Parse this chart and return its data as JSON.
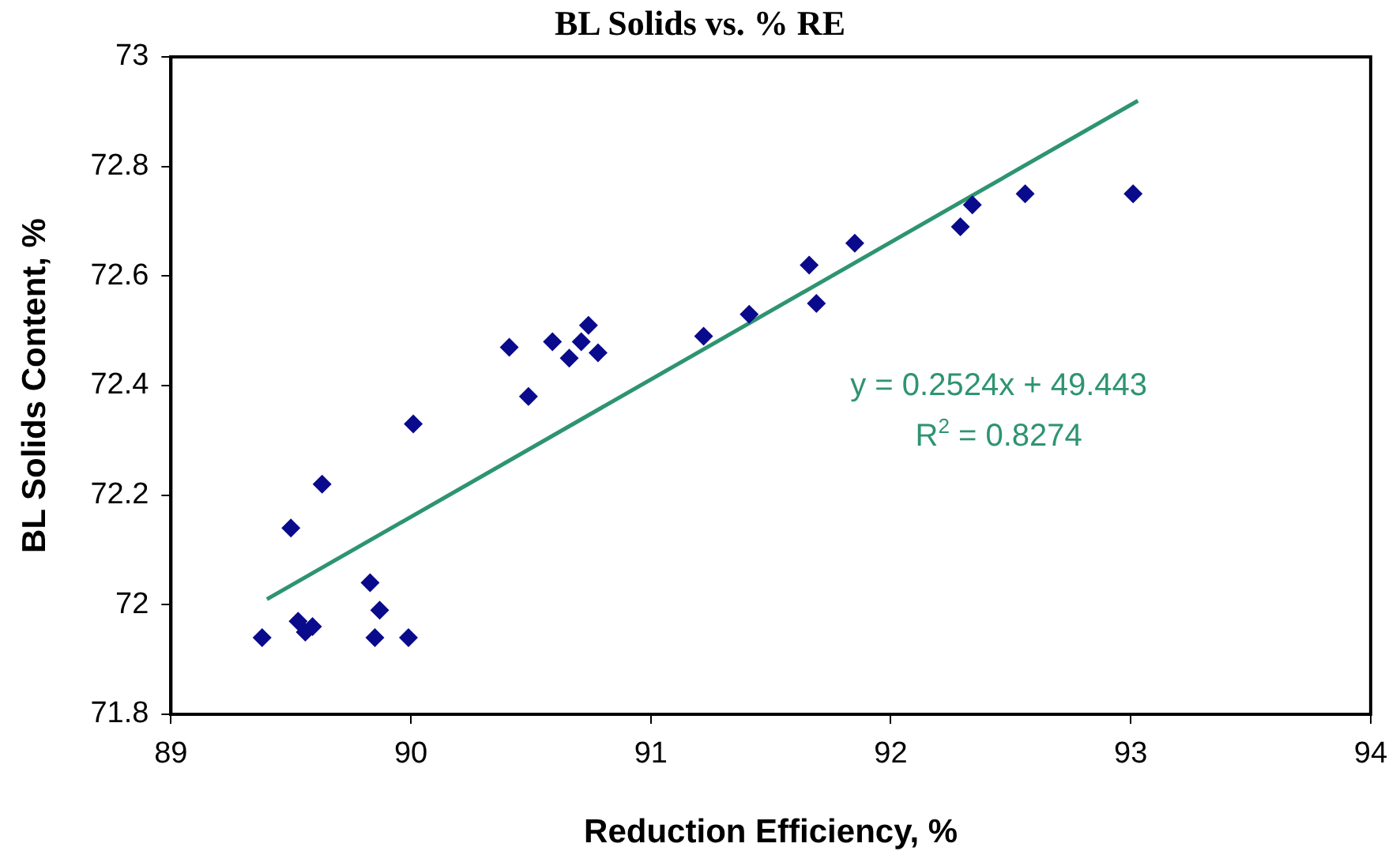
{
  "chart_data": {
    "type": "scatter",
    "title": "BL Solids vs. % RE",
    "xlabel": "Reduction Efficiency, %",
    "ylabel": "BL Solids Content, %",
    "xlim": [
      89,
      94
    ],
    "xticks": [
      89,
      90,
      91,
      92,
      93,
      94
    ],
    "ylim": [
      71.8,
      73
    ],
    "yticks": [
      71.8,
      72,
      72.2,
      72.4,
      72.6,
      72.8,
      73
    ],
    "grid": false,
    "legend": false,
    "marker": "diamond",
    "series": [
      {
        "color": "#0a0a8c",
        "x": [
          89.38,
          89.5,
          89.63,
          89.53,
          89.59,
          89.56,
          89.83,
          89.87,
          89.85,
          89.99,
          90.01,
          90.41,
          90.49,
          90.59,
          90.66,
          90.71,
          90.74,
          90.78,
          91.22,
          91.41,
          91.66,
          91.69,
          91.85,
          92.29,
          92.34,
          92.56,
          93.01
        ],
        "values": [
          71.94,
          72.14,
          72.22,
          71.97,
          71.96,
          71.95,
          72.04,
          71.99,
          71.94,
          71.94,
          72.33,
          72.47,
          72.38,
          72.48,
          72.45,
          72.48,
          72.51,
          72.46,
          72.49,
          72.53,
          72.62,
          72.55,
          72.66,
          72.69,
          72.73,
          72.75,
          72.75
        ]
      },
      {
        "type": "line",
        "color": "#2e9470",
        "marker": "none",
        "line_style": "solid",
        "x": [
          89.4,
          93.03
        ],
        "values": [
          72.01,
          72.92
        ]
      }
    ],
    "annotations": [
      "y = 0.2524x + 49.443",
      "R$^{2}$ = 0.8274"
    ]
  }
}
